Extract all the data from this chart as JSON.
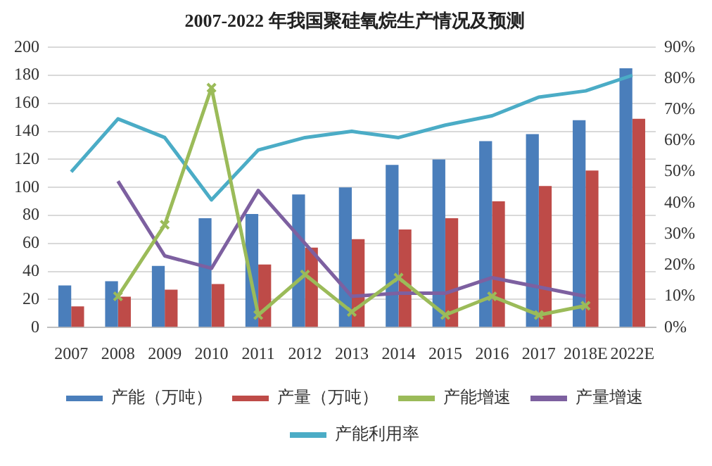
{
  "chart_data": {
    "type": "bar",
    "title": "2007-2022 年我国聚硅氧烷生产情况及预测",
    "categories": [
      "2007",
      "2008",
      "2009",
      "2010",
      "2011",
      "2012",
      "2013",
      "2014",
      "2015",
      "2016",
      "2017",
      "2018E",
      "2022E"
    ],
    "series": [
      {
        "name": "产能（万吨）",
        "color": "#4a7ebb",
        "values": [
          30,
          33,
          44,
          78,
          81,
          95,
          100,
          116,
          120,
          133,
          138,
          148,
          185
        ]
      },
      {
        "name": "产量（万吨）",
        "color": "#be4b48",
        "values": [
          15,
          22,
          27,
          31,
          45,
          57,
          63,
          70,
          78,
          90,
          101,
          112,
          149
        ]
      },
      {
        "name": "产能增速",
        "type": "line",
        "axis": "y2",
        "marker": "cross",
        "color": "#9bbb59",
        "values": [
          null,
          10,
          33,
          77,
          4,
          17,
          5,
          16,
          4,
          10,
          4,
          7,
          null
        ]
      },
      {
        "name": "产量增速",
        "type": "line",
        "axis": "y2",
        "marker": "none",
        "color": "#7d60a0",
        "values": [
          null,
          47,
          23,
          19,
          44,
          27,
          10,
          11,
          11,
          16,
          13,
          10,
          null
        ]
      },
      {
        "name": "产能利用率",
        "type": "line",
        "axis": "y2",
        "marker": "none",
        "color": "#4bacc6",
        "values": [
          50,
          67,
          61,
          41,
          57,
          61,
          63,
          61,
          65,
          68,
          74,
          76,
          81
        ]
      }
    ],
    "ylim": [
      0,
      200
    ],
    "yticks": [
      0,
      20,
      40,
      60,
      80,
      100,
      120,
      140,
      160,
      180,
      200
    ],
    "y2lim": [
      0,
      90
    ],
    "y2ticks": [
      {
        "value": 0,
        "label": "0%"
      },
      {
        "value": 10,
        "label": "10%"
      },
      {
        "value": 20,
        "label": "20%"
      },
      {
        "value": 30,
        "label": "30%"
      },
      {
        "value": 40,
        "label": "40%"
      },
      {
        "value": 50,
        "label": "50%"
      },
      {
        "value": 60,
        "label": "60%"
      },
      {
        "value": 70,
        "label": "70%"
      },
      {
        "value": 80,
        "label": "80%"
      },
      {
        "value": 90,
        "label": "90%"
      }
    ],
    "grid": "y",
    "legend": "bottom"
  }
}
